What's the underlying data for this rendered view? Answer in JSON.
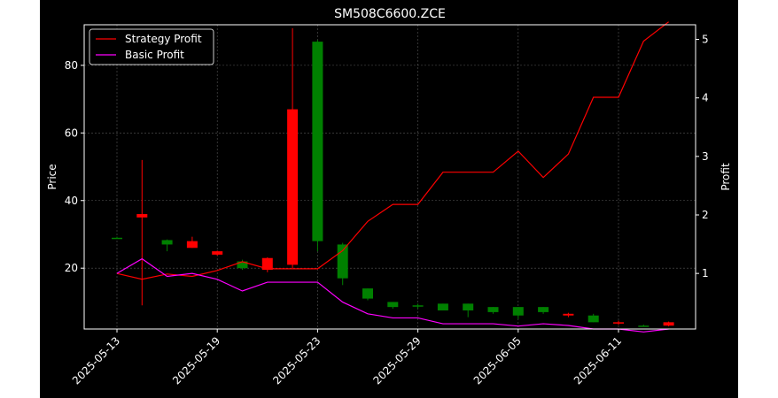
{
  "chart_data": {
    "type": "candlestick",
    "title": "SM508C6600.ZCE",
    "ylabel_left": "Price",
    "ylabel_right": "Profit",
    "x_ticks": [
      "2025-05-13",
      "2025-05-19",
      "2025-05-23",
      "2025-05-29",
      "2025-06-05",
      "2025-06-11"
    ],
    "y_left_ticks": [
      "20",
      "40",
      "60",
      "80"
    ],
    "y_right_ticks": [
      "1",
      "2",
      "3",
      "4",
      "5"
    ],
    "y_left_range": [
      2,
      92
    ],
    "y_right_range": [
      0.05,
      5.25
    ],
    "legend": {
      "placement": "top-left",
      "entries": [
        "Strategy Profit",
        "Basic Profit"
      ]
    },
    "grid": true,
    "colors": {
      "up": "#008000",
      "down": "#ff0000",
      "strategy": "#ff0000",
      "basic": "#ff00ff",
      "background": "#000000",
      "foreground": "#ffffff"
    },
    "dates": [
      "2025-05-13",
      "2025-05-14",
      "2025-05-15",
      "2025-05-16",
      "2025-05-19",
      "2025-05-20",
      "2025-05-21",
      "2025-05-22",
      "2025-05-23",
      "2025-05-26",
      "2025-05-27",
      "2025-05-28",
      "2025-05-29",
      "2025-05-30",
      "2025-06-03",
      "2025-06-04",
      "2025-06-05",
      "2025-06-06",
      "2025-06-09",
      "2025-06-10",
      "2025-06-11",
      "2025-06-12",
      "2025-06-13"
    ],
    "candles": [
      {
        "o": 29.0,
        "h": 29.3,
        "l": 28.7,
        "c": 29.0
      },
      {
        "o": 36.0,
        "h": 52.0,
        "l": 9.0,
        "c": 35.0
      },
      {
        "o": 27.0,
        "h": 28.5,
        "l": 25.0,
        "c": 28.3
      },
      {
        "o": 28.0,
        "h": 29.3,
        "l": 26.0,
        "c": 26.0
      },
      {
        "o": 25.0,
        "h": 25.2,
        "l": 23.7,
        "c": 24.0
      },
      {
        "o": 20.0,
        "h": 22.5,
        "l": 19.5,
        "c": 22.0
      },
      {
        "o": 23.0,
        "h": 23.2,
        "l": 18.8,
        "c": 19.5
      },
      {
        "o": 67.0,
        "h": 91.0,
        "l": 20.0,
        "c": 21.0
      },
      {
        "o": 28.0,
        "h": 87.5,
        "l": 25.0,
        "c": 87.0
      },
      {
        "o": 17.0,
        "h": 27.5,
        "l": 15.0,
        "c": 27.0
      },
      {
        "o": 11.0,
        "h": 14.0,
        "l": 10.5,
        "c": 14.0
      },
      {
        "o": 8.5,
        "h": 10.0,
        "l": 8.0,
        "c": 10.0
      },
      {
        "o": 9.0,
        "h": 9.5,
        "l": 8.0,
        "c": 9.0
      },
      {
        "o": 7.5,
        "h": 9.5,
        "l": 7.5,
        "c": 9.5
      },
      {
        "o": 7.5,
        "h": 9.5,
        "l": 5.5,
        "c": 9.5
      },
      {
        "o": 7.0,
        "h": 8.5,
        "l": 6.5,
        "c": 8.5
      },
      {
        "o": 6.0,
        "h": 8.5,
        "l": 5.0,
        "c": 8.5
      },
      {
        "o": 7.0,
        "h": 8.5,
        "l": 6.5,
        "c": 8.5
      },
      {
        "o": 6.5,
        "h": 6.8,
        "l": 5.5,
        "c": 6.0
      },
      {
        "o": 4.0,
        "h": 6.5,
        "l": 4.0,
        "c": 6.0
      },
      {
        "o": 4.0,
        "h": 4.5,
        "l": 3.2,
        "c": 3.8
      },
      {
        "o": 3.0,
        "h": 3.3,
        "l": 2.7,
        "c": 3.0
      },
      {
        "o": 4.0,
        "h": 4.2,
        "l": 2.8,
        "c": 3.0
      }
    ],
    "series": [
      {
        "name": "Strategy Profit",
        "values": [
          1.0,
          0.9,
          0.99,
          0.95,
          1.05,
          1.2,
          1.08,
          1.08,
          1.08,
          1.39,
          1.89,
          2.18,
          2.18,
          2.73,
          2.73,
          2.73,
          3.09,
          2.64,
          3.04,
          4.01,
          4.01,
          4.97,
          5.3
        ]
      },
      {
        "name": "Basic Profit",
        "values": [
          1.0,
          1.25,
          0.95,
          1.0,
          0.9,
          0.7,
          0.85,
          0.85,
          0.85,
          0.51,
          0.31,
          0.24,
          0.24,
          0.14,
          0.14,
          0.14,
          0.1,
          0.14,
          0.11,
          0.05,
          0.05,
          0.0,
          0.05
        ]
      }
    ]
  }
}
